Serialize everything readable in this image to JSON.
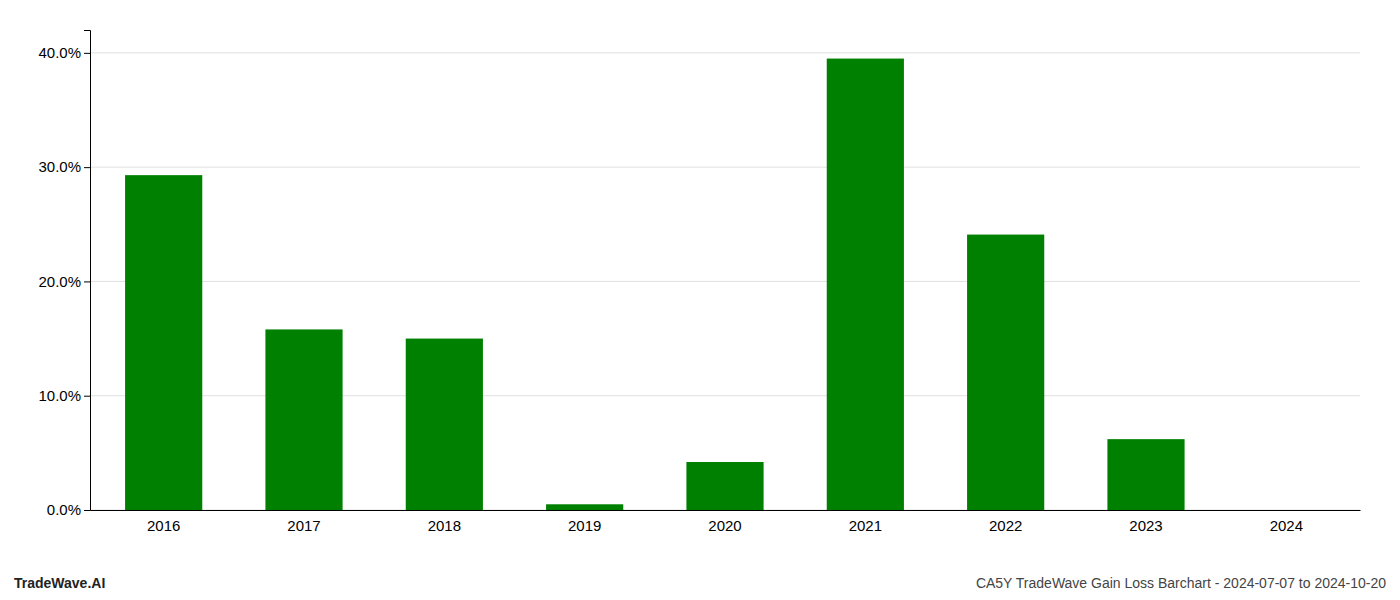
{
  "chart_data": {
    "type": "bar",
    "categories": [
      "2016",
      "2017",
      "2018",
      "2019",
      "2020",
      "2021",
      "2022",
      "2023",
      "2024"
    ],
    "values": [
      0.293,
      0.158,
      0.15,
      0.005,
      0.042,
      0.395,
      0.241,
      0.062,
      0.0
    ],
    "color": "#008000",
    "ylim": [
      0,
      0.42
    ],
    "yticks": [
      {
        "value": 0.0,
        "label": "0.0%"
      },
      {
        "value": 0.1,
        "label": "10.0%"
      },
      {
        "value": 0.2,
        "label": "20.0%"
      },
      {
        "value": 0.3,
        "label": "30.0%"
      },
      {
        "value": 0.4,
        "label": "40.0%"
      }
    ],
    "grid": true,
    "annotations": [
      "TradeWave.AI",
      "CA5Y TradeWave Gain Loss Barchart - 2024-07-07 to 2024-10-20"
    ]
  }
}
